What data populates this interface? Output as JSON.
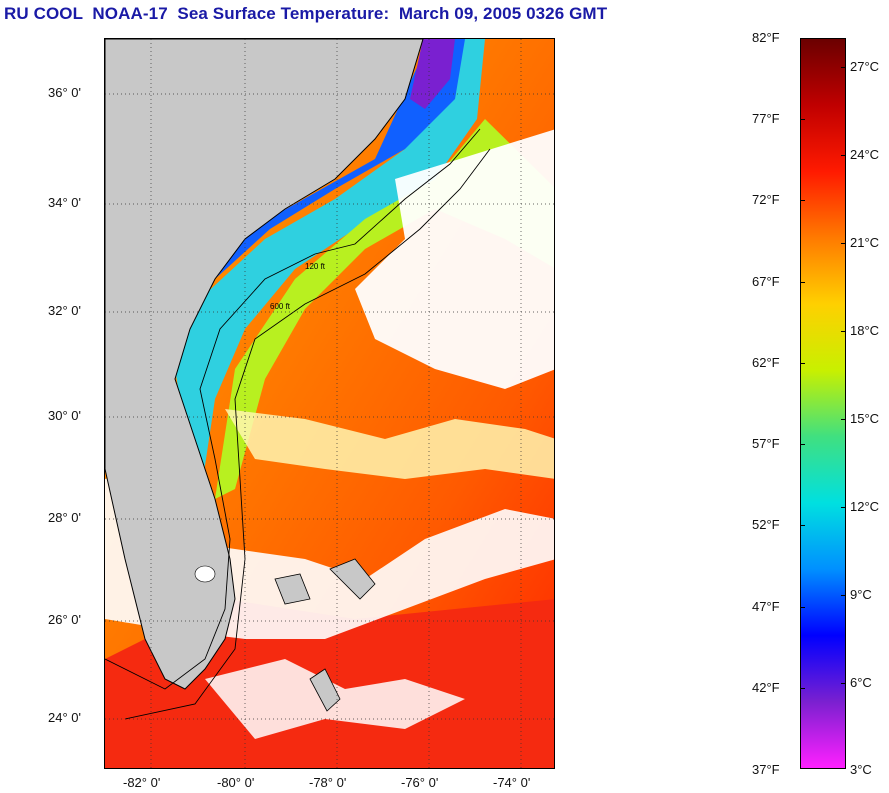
{
  "title": "RU COOL  NOAA-17  Sea Surface Temperature:  March 09, 2005 0326 GMT",
  "map": {
    "lat_labels": [
      "36° 0'",
      "34° 0'",
      "32° 0'",
      "30° 0'",
      "28° 0'",
      "26° 0'",
      "24° 0'"
    ],
    "lon_labels": [
      "-82° 0'",
      "-80° 0'",
      "-78° 0'",
      "-76° 0'",
      "-74° 0'"
    ],
    "land_color": "#c8c8c8",
    "cloud_color": "#ffffff",
    "contour_labels": [
      "120 ft",
      "600 ft"
    ]
  },
  "colorbar": {
    "fahrenheit_labels": [
      "82°F",
      "77°F",
      "72°F",
      "67°F",
      "62°F",
      "57°F",
      "52°F",
      "47°F",
      "42°F",
      "37°F"
    ],
    "celsius_labels": [
      "27°C",
      "24°C",
      "21°C",
      "18°C",
      "15°C",
      "12°C",
      "9°C",
      "6°C",
      "3°C"
    ],
    "colors_top_to_bottom": [
      "#6b0000",
      "#c00000",
      "#ff1a00",
      "#ff7a00",
      "#ffd000",
      "#c8f000",
      "#40e080",
      "#00e0e0",
      "#0090ff",
      "#0000ff",
      "#7a20d0",
      "#ff20ff"
    ]
  }
}
